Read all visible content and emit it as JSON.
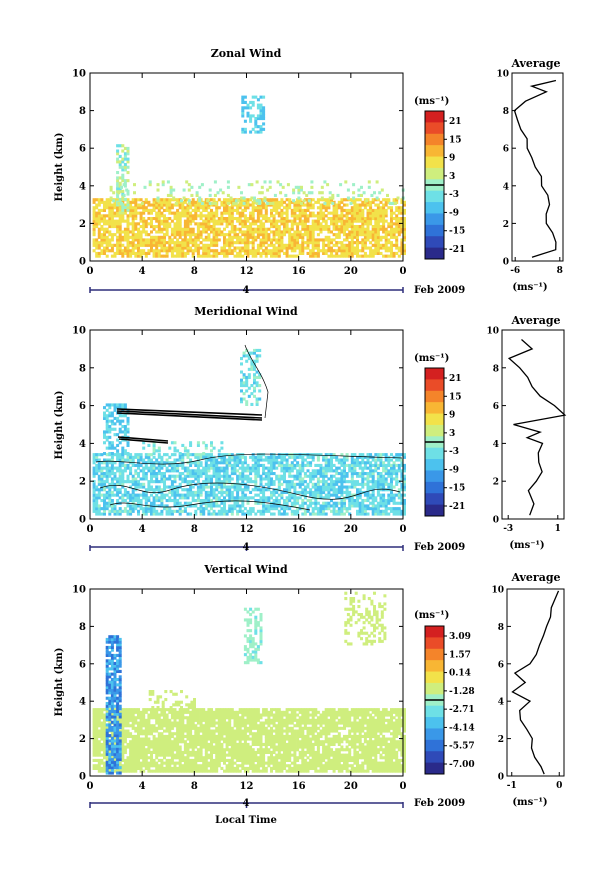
{
  "figure": {
    "xlabel_bottom": "Local Time",
    "date_label": "Feb 2009",
    "day_label": "4",
    "ylabel": "Height (km)",
    "average_title": "Average",
    "unit_label": "(ms⁻¹)",
    "colormap": [
      "#2a2a8a",
      "#2f4ab8",
      "#2f72d8",
      "#3a98e8",
      "#4cc2ee",
      "#6ee0e6",
      "#9ff0c8",
      "#cfee7e",
      "#f2e24a",
      "#f8b634",
      "#f4842a",
      "#ea4c28",
      "#d42020"
    ]
  },
  "chart_data": [
    {
      "type": "heatmap",
      "title": "Zonal Wind",
      "x_ticks": [
        "0",
        "4",
        "8",
        "12",
        "16",
        "20",
        "0"
      ],
      "y_ticks": [
        "0",
        "2",
        "4",
        "6",
        "8",
        "10"
      ],
      "xlim": [
        0,
        24
      ],
      "ylim": [
        0,
        10
      ],
      "colorbar_ticks": [
        "21",
        "15",
        "9",
        "3",
        "-3",
        "-9",
        "-15",
        "-21"
      ],
      "colorbar_range": [
        -24,
        24
      ],
      "average_profile": {
        "xlabel": "(ms⁻¹)",
        "x_ticks": [
          "-6",
          "8"
        ],
        "xlim": [
          -7,
          9
        ],
        "y_ticks": [
          "0",
          "2",
          "4",
          "6",
          "8",
          "10"
        ],
        "height_km": [
          0.2,
          0.6,
          1.0,
          1.5,
          2.0,
          2.5,
          3.0,
          3.5,
          4.0,
          4.5,
          5.0,
          5.5,
          6.0,
          6.5,
          7.0,
          7.5,
          8.0,
          8.5,
          9.0,
          9.3,
          9.6
        ],
        "values": [
          -0.5,
          6.5,
          7.0,
          5.5,
          4.0,
          3.5,
          5.0,
          4.0,
          2.5,
          2.0,
          0.5,
          -1.0,
          -2.0,
          -2.5,
          -4.0,
          -5.5,
          -6.0,
          -3.0,
          4.0,
          -1.0,
          7.0
        ]
      }
    },
    {
      "type": "heatmap",
      "title": "Meridional Wind",
      "x_ticks": [
        "0",
        "4",
        "8",
        "12",
        "16",
        "20",
        "0"
      ],
      "y_ticks": [
        "0",
        "2",
        "4",
        "6",
        "8",
        "10"
      ],
      "xlim": [
        0,
        24
      ],
      "ylim": [
        0,
        10
      ],
      "colorbar_ticks": [
        "21",
        "15",
        "9",
        "3",
        "-3",
        "-9",
        "-15",
        "-21"
      ],
      "colorbar_range": [
        -24,
        24
      ],
      "average_profile": {
        "xlabel": "(ms⁻¹)",
        "x_ticks": [
          "-3",
          "1"
        ],
        "xlim": [
          -3.5,
          1.5
        ],
        "y_ticks": [
          "0",
          "2",
          "4",
          "6",
          "8",
          "10"
        ],
        "height_km": [
          0.2,
          0.8,
          1.5,
          2.0,
          2.5,
          3.0,
          3.5,
          4.0,
          4.3,
          4.6,
          5.0,
          5.5,
          6.0,
          6.5,
          7.0,
          7.5,
          8.0,
          8.5,
          9.0,
          9.5
        ],
        "values": [
          -1.2,
          -1.0,
          -1.3,
          -0.8,
          -0.2,
          -0.6,
          -0.5,
          -0.3,
          -1.4,
          -0.5,
          -2.5,
          1.5,
          0.8,
          -0.5,
          -1.0,
          -1.5,
          -2.0,
          -3.0,
          -1.0,
          -2.0
        ]
      }
    },
    {
      "type": "heatmap",
      "title": "Vertical Wind",
      "x_ticks": [
        "0",
        "4",
        "8",
        "12",
        "16",
        "20",
        "0"
      ],
      "y_ticks": [
        "0",
        "2",
        "4",
        "6",
        "8",
        "10"
      ],
      "xlim": [
        0,
        24
      ],
      "ylim": [
        0,
        10
      ],
      "colorbar_ticks": [
        "3.09",
        "1.57",
        "0.14",
        "-1.28",
        "-2.71",
        "-4.14",
        "-5.57",
        "-7.00"
      ],
      "colorbar_range": [
        -7.7,
        3.8
      ],
      "average_profile": {
        "xlabel": "(ms⁻¹)",
        "x_ticks": [
          "-1",
          "0"
        ],
        "xlim": [
          -1.1,
          0.1
        ],
        "y_ticks": [
          "0",
          "2",
          "4",
          "6",
          "8",
          "10"
        ],
        "height_km": [
          0.1,
          0.5,
          1.0,
          1.5,
          2.0,
          2.5,
          3.0,
          3.5,
          4.0,
          4.5,
          5.0,
          5.5,
          6.0,
          6.5,
          7.0,
          7.5,
          8.0,
          8.5,
          9.0,
          9.5,
          9.9
        ],
        "values": [
          -0.3,
          -0.4,
          -0.5,
          -0.6,
          -0.55,
          -0.7,
          -0.8,
          -0.85,
          -0.6,
          -1.0,
          -0.7,
          -0.95,
          -0.6,
          -0.5,
          -0.4,
          -0.35,
          -0.25,
          -0.2,
          -0.15,
          -0.1,
          0.0
        ]
      }
    }
  ]
}
